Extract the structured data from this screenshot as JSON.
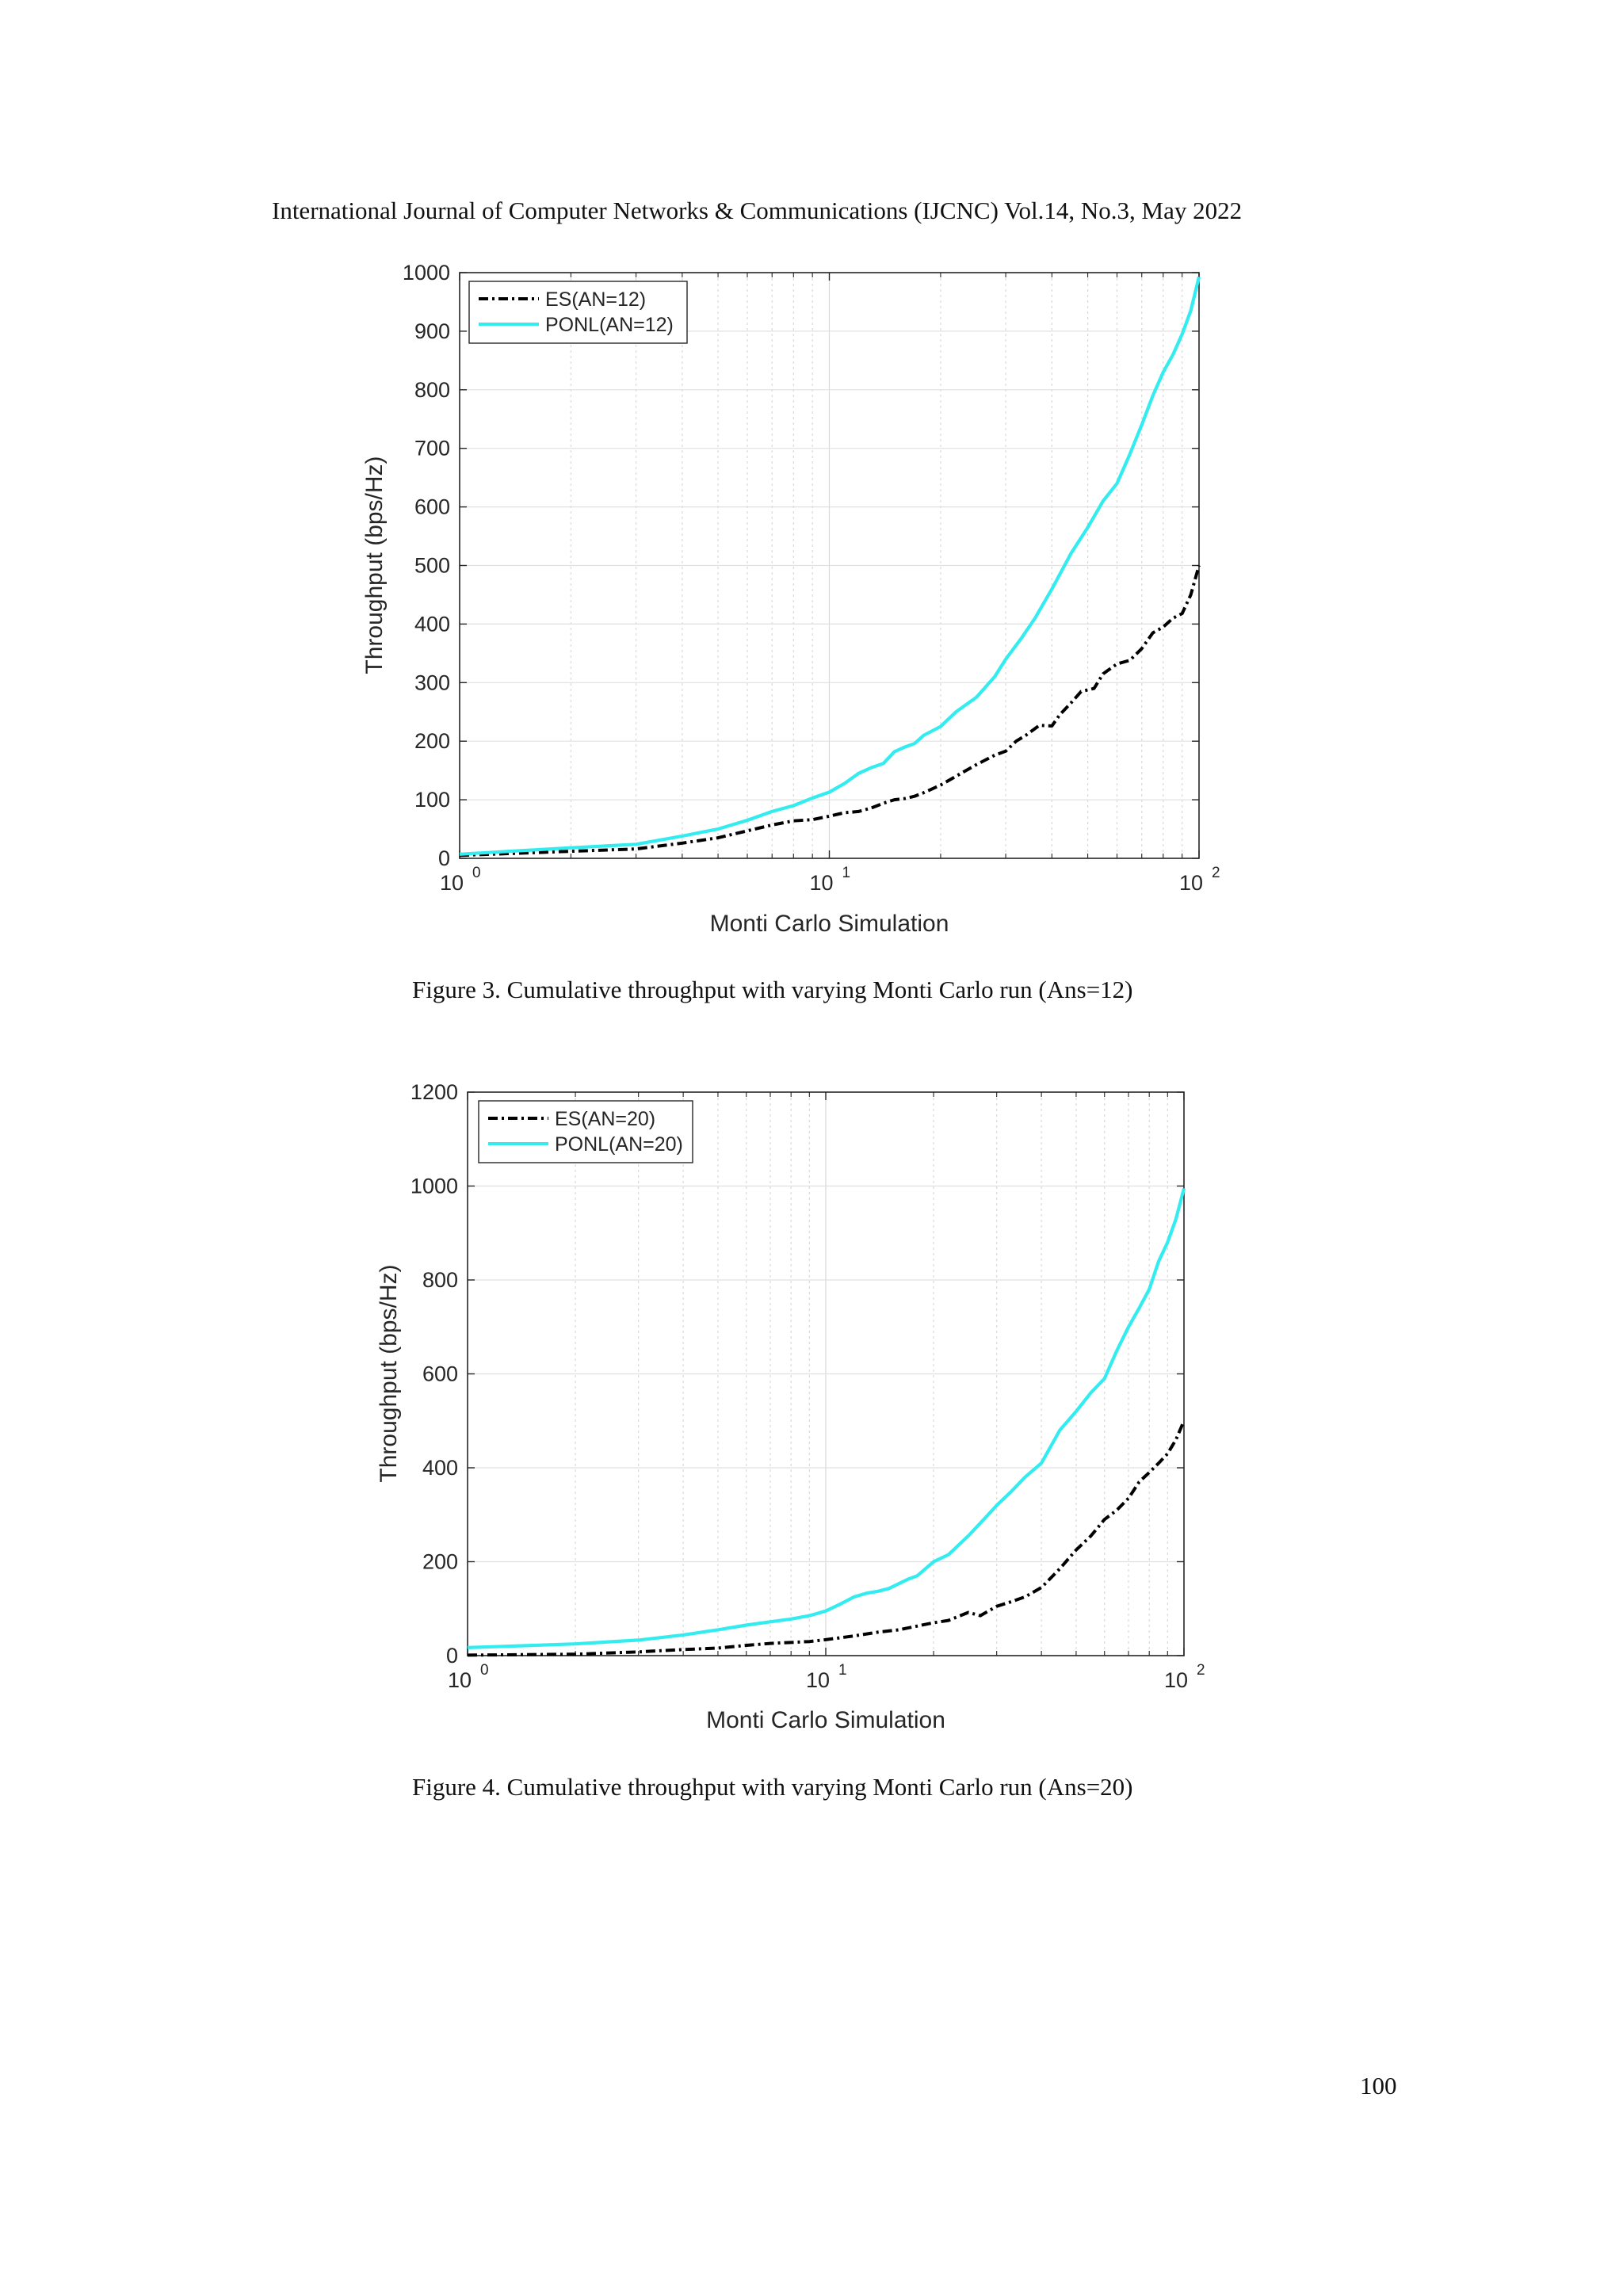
{
  "page": {
    "running_header": "International Journal of Computer Networks & Communications (IJCNC) Vol.14, No.3, May 2022",
    "page_number": "100"
  },
  "figures": [
    {
      "caption": "Figure 3. Cumulative throughput with varying Monti Carlo run (Ans=12)"
    },
    {
      "caption": "Figure 4. Cumulative throughput with varying Monti Carlo run (Ans=20)"
    }
  ],
  "chart_data": [
    {
      "type": "line",
      "xlabel": "Monti Carlo Simulation",
      "ylabel": "Throughput (bps/Hz)",
      "xscale": "log",
      "xlim": [
        1,
        100
      ],
      "ylim": [
        0,
        1000
      ],
      "yticks": [
        0,
        100,
        200,
        300,
        400,
        500,
        600,
        700,
        800,
        900,
        1000
      ],
      "xticks": [
        {
          "base": "10",
          "exp": "0",
          "value": 1
        },
        {
          "base": "10",
          "exp": "1",
          "value": 10
        },
        {
          "base": "10",
          "exp": "2",
          "value": 100
        }
      ],
      "grid": true,
      "legend_position": "top-left",
      "series": [
        {
          "name": "ES(AN=12)",
          "color": "#000000",
          "style": "dash-dot",
          "points": [
            [
              1,
              5
            ],
            [
              2,
              12
            ],
            [
              3,
              16
            ],
            [
              4,
              26
            ],
            [
              5,
              35
            ],
            [
              6,
              47
            ],
            [
              7,
              57
            ],
            [
              8,
              64
            ],
            [
              9,
              66
            ],
            [
              10,
              72
            ],
            [
              11,
              78
            ],
            [
              12,
              80
            ],
            [
              13,
              86
            ],
            [
              14,
              94
            ],
            [
              15,
              100
            ],
            [
              16,
              102
            ],
            [
              17,
              106
            ],
            [
              18,
              112
            ],
            [
              20,
              125
            ],
            [
              22,
              140
            ],
            [
              25,
              160
            ],
            [
              28,
              176
            ],
            [
              30,
              183
            ],
            [
              32,
              200
            ],
            [
              34,
              210
            ],
            [
              37,
              227
            ],
            [
              40,
              226
            ],
            [
              42,
              245
            ],
            [
              45,
              265
            ],
            [
              48,
              285
            ],
            [
              52,
              290
            ],
            [
              55,
              315
            ],
            [
              60,
              332
            ],
            [
              65,
              338
            ],
            [
              70,
              358
            ],
            [
              75,
              385
            ],
            [
              80,
              395
            ],
            [
              85,
              410
            ],
            [
              90,
              418
            ],
            [
              95,
              450
            ],
            [
              100,
              500
            ]
          ]
        },
        {
          "name": "PONL(AN=12)",
          "color": "#33ecf0",
          "style": "solid",
          "points": [
            [
              1,
              7
            ],
            [
              2,
              18
            ],
            [
              3,
              24
            ],
            [
              4,
              38
            ],
            [
              5,
              50
            ],
            [
              6,
              65
            ],
            [
              7,
              80
            ],
            [
              8,
              90
            ],
            [
              9,
              103
            ],
            [
              10,
              113
            ],
            [
              11,
              128
            ],
            [
              12,
              145
            ],
            [
              13,
              155
            ],
            [
              14,
              162
            ],
            [
              15,
              182
            ],
            [
              16,
              190
            ],
            [
              17,
              196
            ],
            [
              18,
              210
            ],
            [
              20,
              225
            ],
            [
              22,
              250
            ],
            [
              25,
              275
            ],
            [
              28,
              310
            ],
            [
              30,
              340
            ],
            [
              33,
              375
            ],
            [
              36,
              410
            ],
            [
              40,
              460
            ],
            [
              45,
              520
            ],
            [
              50,
              565
            ],
            [
              55,
              610
            ],
            [
              60,
              640
            ],
            [
              65,
              690
            ],
            [
              70,
              740
            ],
            [
              75,
              790
            ],
            [
              80,
              830
            ],
            [
              85,
              860
            ],
            [
              90,
              895
            ],
            [
              95,
              935
            ],
            [
              100,
              993
            ]
          ]
        }
      ]
    },
    {
      "type": "line",
      "xlabel": "Monti Carlo Simulation",
      "ylabel": "Throughput (bps/Hz)",
      "xscale": "log",
      "xlim": [
        1,
        100
      ],
      "ylim": [
        0,
        1200
      ],
      "yticks": [
        0,
        200,
        400,
        600,
        800,
        1000,
        1200
      ],
      "xticks": [
        {
          "base": "10",
          "exp": "0",
          "value": 1
        },
        {
          "base": "10",
          "exp": "1",
          "value": 10
        },
        {
          "base": "10",
          "exp": "2",
          "value": 100
        }
      ],
      "grid": true,
      "legend_position": "top-left",
      "series": [
        {
          "name": "ES(AN=20)",
          "color": "#000000",
          "style": "dash-dot",
          "points": [
            [
              1,
              1
            ],
            [
              2,
              3
            ],
            [
              3,
              8
            ],
            [
              4,
              13
            ],
            [
              5,
              16
            ],
            [
              6,
              22
            ],
            [
              7,
              26
            ],
            [
              8,
              28
            ],
            [
              9,
              30
            ],
            [
              10,
              34
            ],
            [
              12,
              42
            ],
            [
              14,
              50
            ],
            [
              16,
              55
            ],
            [
              18,
              63
            ],
            [
              20,
              70
            ],
            [
              22,
              75
            ],
            [
              25,
              92
            ],
            [
              27,
              85
            ],
            [
              30,
              105
            ],
            [
              33,
              115
            ],
            [
              36,
              125
            ],
            [
              40,
              145
            ],
            [
              45,
              185
            ],
            [
              50,
              225
            ],
            [
              55,
              255
            ],
            [
              60,
              290
            ],
            [
              65,
              310
            ],
            [
              70,
              335
            ],
            [
              75,
              370
            ],
            [
              80,
              390
            ],
            [
              85,
              410
            ],
            [
              90,
              430
            ],
            [
              95,
              460
            ],
            [
              100,
              500
            ]
          ]
        },
        {
          "name": "PONL(AN=20)",
          "color": "#33ecf0",
          "style": "solid",
          "points": [
            [
              1,
              17
            ],
            [
              2,
              25
            ],
            [
              3,
              33
            ],
            [
              4,
              44
            ],
            [
              5,
              55
            ],
            [
              6,
              65
            ],
            [
              7,
              72
            ],
            [
              8,
              78
            ],
            [
              9,
              85
            ],
            [
              10,
              95
            ],
            [
              11,
              110
            ],
            [
              12,
              125
            ],
            [
              13,
              133
            ],
            [
              14,
              137
            ],
            [
              15,
              143
            ],
            [
              17,
              163
            ],
            [
              18,
              170
            ],
            [
              20,
              200
            ],
            [
              22,
              215
            ],
            [
              25,
              255
            ],
            [
              28,
              295
            ],
            [
              30,
              320
            ],
            [
              33,
              350
            ],
            [
              36,
              380
            ],
            [
              40,
              410
            ],
            [
              45,
              480
            ],
            [
              50,
              520
            ],
            [
              55,
              560
            ],
            [
              60,
              590
            ],
            [
              65,
              650
            ],
            [
              70,
              700
            ],
            [
              75,
              740
            ],
            [
              80,
              780
            ],
            [
              85,
              840
            ],
            [
              90,
              880
            ],
            [
              95,
              930
            ],
            [
              100,
              995
            ]
          ]
        }
      ]
    }
  ]
}
